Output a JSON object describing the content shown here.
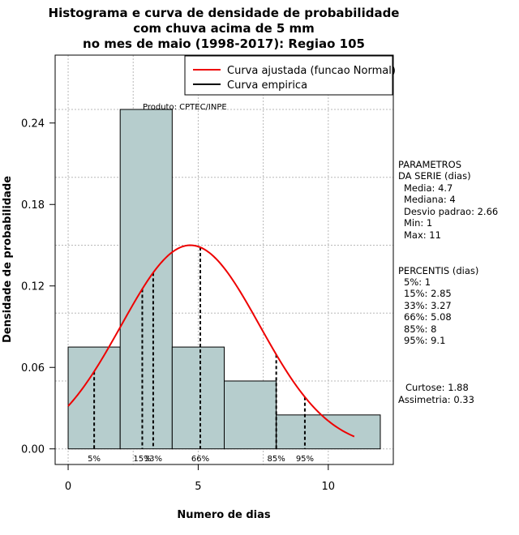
{
  "chart_data": {
    "type": "bar",
    "title_lines": [
      "Histograma e curva de densidade de probabilidade",
      "com chuva acima de 5 mm",
      "no mes de maio (1998-2017): Regiao 105"
    ],
    "xlabel": "Numero de dias",
    "ylabel": "Densidade de probabilidade",
    "xlim": [
      -0.5,
      12.5
    ],
    "ylim": [
      -0.0115,
      0.29
    ],
    "x_ticks": [
      0,
      5,
      10
    ],
    "x_tick_labels": [
      "0",
      "5",
      "10"
    ],
    "y_ticks": [
      0.0,
      0.06,
      0.12,
      0.18,
      0.24
    ],
    "y_tick_labels": [
      "0.00",
      "0.06",
      "0.12",
      "0.18",
      "0.24"
    ],
    "x_grid": [
      0,
      2.5,
      5,
      7.5,
      10,
      12.5
    ],
    "y_grid": [
      0.0,
      0.05,
      0.1,
      0.15,
      0.2,
      0.25
    ],
    "histogram": [
      {
        "x0": 0,
        "x1": 2,
        "density": 0.075
      },
      {
        "x0": 2,
        "x1": 4,
        "density": 0.25
      },
      {
        "x0": 4,
        "x1": 6,
        "density": 0.075
      },
      {
        "x0": 6,
        "x1": 8,
        "density": 0.05
      },
      {
        "x0": 8,
        "x1": 12,
        "density": 0.025
      }
    ],
    "fitted_curve": {
      "name": "Curva ajustada (funcao Normal)",
      "mean": 4.7,
      "sd": 2.66,
      "x_start": 0,
      "x_end": 11,
      "color": "#ee0000"
    },
    "empirical_curve": {
      "name": "Curva empirica",
      "color": "#000000"
    },
    "percentile_lines": [
      {
        "x": 1,
        "label": "5%"
      },
      {
        "x": 2.85,
        "label": "15%"
      },
      {
        "x": 3.27,
        "label": "33%"
      },
      {
        "x": 5.08,
        "label": "66%"
      },
      {
        "x": 8,
        "label": "85%"
      },
      {
        "x": 9.1,
        "label": "95%"
      }
    ],
    "product_label": "Produto: CPTEC/INPE",
    "bar_color": "#b6cdcd"
  },
  "side_panel": {
    "params_title_1": "PARAMETROS",
    "params_title_2": "DA SERIE (dias)",
    "media": "Media: 4.7",
    "mediana": "Mediana: 4",
    "desvio": "Desvio padrao: 2.66",
    "min": "Min: 1",
    "max": "Max: 11",
    "percentis_title": "PERCENTIS (dias)",
    "p5": "5%: 1",
    "p15": "15%: 2.85",
    "p33": "33%: 3.27",
    "p66": "66%: 5.08",
    "p85": "85%: 8",
    "p95": "95%: 9.1",
    "curtose": "Curtose: 1.88",
    "assimetria": "Assimetria: 0.33"
  }
}
